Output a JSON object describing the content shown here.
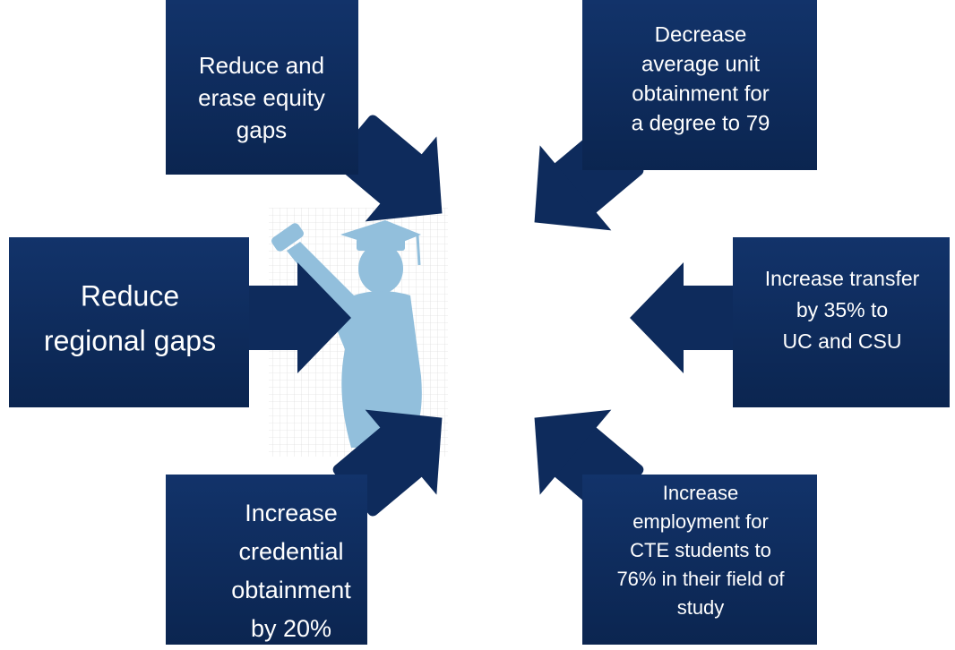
{
  "nodes": [
    {
      "lines": [
        "Reduce and",
        "erase equity",
        "gaps"
      ]
    },
    {
      "lines": [
        "Decrease",
        "average unit",
        "obtainment for",
        "a degree to 79"
      ]
    },
    {
      "lines": [
        "Reduce",
        "regional gaps"
      ]
    },
    {
      "lines": [
        "Increase transfer",
        "by 35% to",
        "UC and CSU"
      ]
    },
    {
      "lines": [
        "Increase",
        "credential",
        "obtainment",
        "by 20%"
      ]
    },
    {
      "lines": [
        "Increase",
        "employment for",
        "CTE students to",
        "76% in their field of",
        "study"
      ]
    }
  ]
}
